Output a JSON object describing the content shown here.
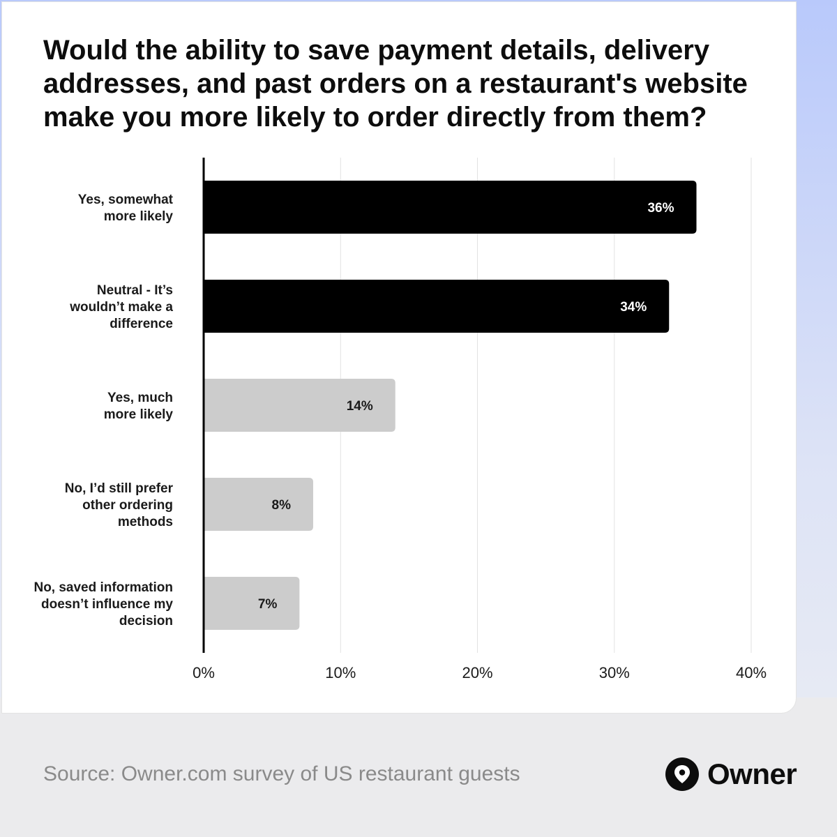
{
  "title": "Would the ability to save payment details, delivery addresses, and past orders on a restaurant's website make you more likely to order directly from them?",
  "source": "Source: Owner.com survey of US restaurant guests",
  "brand": {
    "name": "Owner",
    "logo_icon": "location-pin-icon"
  },
  "colors": {
    "highlight": "#000000",
    "muted": "#cccccc",
    "highlight_text": "#ffffff",
    "muted_text": "#1a1a1a",
    "grid": "#e2e2e2"
  },
  "chart_data": {
    "type": "bar",
    "orientation": "horizontal",
    "categories": [
      [
        "Yes, somewhat",
        "more likely"
      ],
      [
        "Neutral - It’s",
        "wouldn’t make a",
        "difference"
      ],
      [
        "Yes, much",
        "more likely"
      ],
      [
        "No, I’d still prefer",
        "other ordering",
        "methods"
      ],
      [
        "No, saved information",
        "doesn’t influence my",
        "decision"
      ]
    ],
    "values": [
      36,
      34,
      14,
      8,
      7
    ],
    "value_labels": [
      "36%",
      "34%",
      "14%",
      "8%",
      "7%"
    ],
    "highlighted": [
      true,
      true,
      false,
      false,
      false
    ],
    "xlim": [
      0,
      40
    ],
    "xticks": [
      0,
      10,
      20,
      30,
      40
    ],
    "xtick_labels": [
      "0%",
      "10%",
      "20%",
      "30%",
      "40%"
    ],
    "grid": true,
    "legend": "none"
  }
}
